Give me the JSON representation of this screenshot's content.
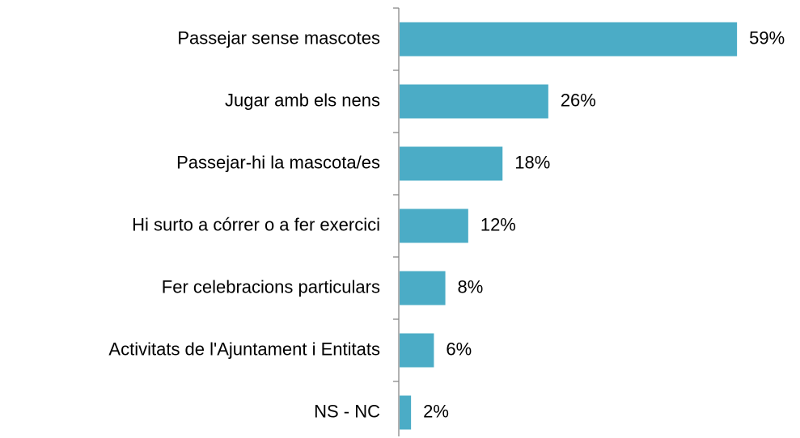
{
  "chart_data": {
    "type": "bar",
    "orientation": "horizontal",
    "categories": [
      "Passejar sense mascotes",
      "Jugar amb els nens",
      "Passejar-hi la mascota/es",
      "Hi surto a córrer o a fer exercici",
      "Fer celebracions particulars",
      "Activitats de l'Ajuntament i Entitats",
      "NS - NC"
    ],
    "values": [
      59,
      26,
      18,
      12,
      8,
      6,
      2
    ],
    "value_labels": [
      "59%",
      "26%",
      "18%",
      "12%",
      "8%",
      "6%",
      "2%"
    ],
    "color": "#4bacc6"
  }
}
